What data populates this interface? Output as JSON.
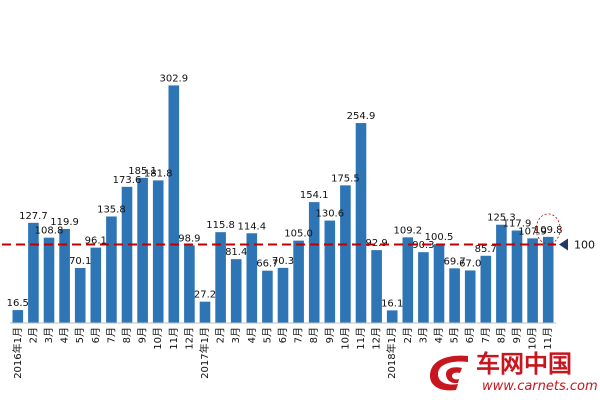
{
  "chart_data": {
    "type": "bar",
    "title": "",
    "xlabel": "",
    "ylabel": "",
    "categories": [
      "2016年1月",
      "2月",
      "3月",
      "4月",
      "5月",
      "6月",
      "7月",
      "8月",
      "9月",
      "10月",
      "11月",
      "12月",
      "2017年1月",
      "2月",
      "3月",
      "4月",
      "5月",
      "6月",
      "7月",
      "8月",
      "9月",
      "10月",
      "11月",
      "12月",
      "2018年1月",
      "2月",
      "3月",
      "4月",
      "5月",
      "6月",
      "7月",
      "8月",
      "9月",
      "10月",
      "11月"
    ],
    "values": [
      16.5,
      127.7,
      108.8,
      119.9,
      70.1,
      96.1,
      135.8,
      173.6,
      185.1,
      181.8,
      302.9,
      98.9,
      27.2,
      115.8,
      81.4,
      114.4,
      66.7,
      70.3,
      105.0,
      154.1,
      130.6,
      175.5,
      254.9,
      92.9,
      16.1,
      109.2,
      90.3,
      100.5,
      69.7,
      67.0,
      85.7,
      125.3,
      117.9,
      107.9,
      109.8
    ],
    "value_labels": [
      "16.5",
      "127.7",
      "108.8",
      "119.9",
      "70.1",
      "96.1",
      "135.8",
      "173.6",
      "185.1",
      "181.8",
      "302.9",
      "98.9",
      "27.2",
      "115.8",
      "81.4",
      "114.4",
      "66.7",
      "70.3",
      "105.0",
      "154.1",
      "130.6",
      "175.5",
      "254.9",
      "92.9",
      "16.1",
      "109.2",
      "90.3",
      "100.5",
      "69.7",
      "67.0",
      "85.7",
      "125.3",
      "117.9",
      "107.9",
      "109.8"
    ],
    "ylim": [
      0,
      320
    ],
    "reference_line": {
      "value": 100,
      "label": "100",
      "color": "#c00000",
      "style": "dashed"
    },
    "highlight_index": 34,
    "bar_color": "#2e75b6",
    "grid": false,
    "legend": "none"
  },
  "watermark": {
    "brand": "车网中国",
    "url": "www.carnets.com",
    "color": "#c7161e"
  }
}
